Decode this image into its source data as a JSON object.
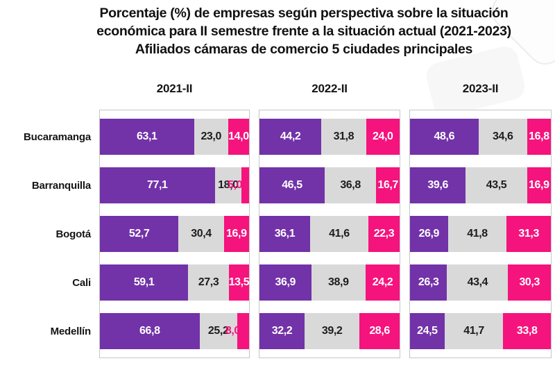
{
  "title": {
    "line1": "Porcentaje (%) de empresas según perspectiva sobre la situación",
    "line2": "económica para II semestre frente a la situación actual (2021-2023)",
    "line3": "Afiliados cámaras de comercio 5 ciudades principales"
  },
  "chart_data": {
    "type": "bar",
    "variant": "horizontal-stacked-100",
    "unit": "%",
    "decimal_separator": ",",
    "value_labels": "inside",
    "legend": "none",
    "grid": false,
    "xlim": [
      0,
      100
    ],
    "categories": [
      "Bucaramanga",
      "Barranquilla",
      "Bogotá",
      "Cali",
      "Medellín"
    ],
    "segment_colors": {
      "purple": "#7232A8",
      "gray": "#D9D9D9",
      "pink": "#F5137D"
    },
    "panels": [
      {
        "label": "2021-II",
        "series": [
          {
            "name": "purple",
            "color": "#7232A8",
            "values": [
              63.1,
              77.1,
              52.7,
              59.1,
              66.8
            ]
          },
          {
            "name": "gray",
            "color": "#D9D9D9",
            "values": [
              23.0,
              18.0,
              30.4,
              27.3,
              25.2
            ]
          },
          {
            "name": "pink",
            "color": "#F5137D",
            "values": [
              14.0,
              5.0,
              16.9,
              13.5,
              8.0
            ]
          }
        ]
      },
      {
        "label": "2022-II",
        "series": [
          {
            "name": "purple",
            "color": "#7232A8",
            "values": [
              44.2,
              46.5,
              36.1,
              36.9,
              32.2
            ]
          },
          {
            "name": "gray",
            "color": "#D9D9D9",
            "values": [
              31.8,
              36.8,
              41.6,
              38.9,
              39.2
            ]
          },
          {
            "name": "pink",
            "color": "#F5137D",
            "values": [
              24.0,
              16.7,
              22.3,
              24.2,
              28.6
            ]
          }
        ]
      },
      {
        "label": "2023-II",
        "series": [
          {
            "name": "purple",
            "color": "#7232A8",
            "values": [
              48.6,
              39.6,
              26.9,
              26.3,
              24.5
            ]
          },
          {
            "name": "gray",
            "color": "#D9D9D9",
            "values": [
              34.6,
              43.5,
              41.8,
              43.4,
              41.7
            ]
          },
          {
            "name": "pink",
            "color": "#F5137D",
            "values": [
              16.8,
              16.9,
              31.3,
              30.3,
              33.8
            ]
          }
        ]
      }
    ]
  }
}
